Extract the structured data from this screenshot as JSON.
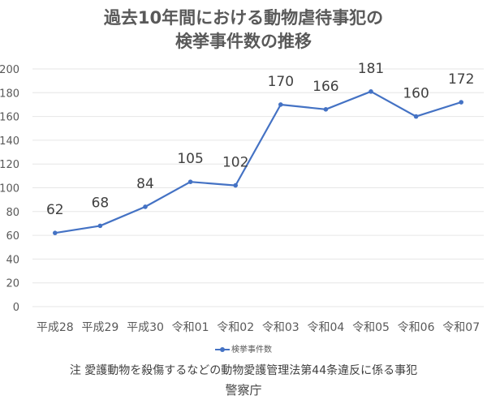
{
  "chart_data": {
    "type": "line",
    "title": "過去10年間における動物虐待事犯の検挙事件数の推移",
    "title_lines": [
      "過去10年間における動物虐待事犯の",
      "検挙事件数の推移"
    ],
    "categories": [
      "平成28",
      "平成29",
      "平成30",
      "令和01",
      "令和02",
      "令和03",
      "令和04",
      "令和05",
      "令和06",
      "令和07"
    ],
    "series": [
      {
        "name": "検挙事件数",
        "values": [
          62,
          68,
          84,
          105,
          102,
          170,
          166,
          181,
          160,
          172
        ],
        "color": "#4472c4"
      }
    ],
    "xlabel": "",
    "ylabel": "",
    "ylim": [
      0,
      200
    ],
    "yticks": [
      0,
      20,
      40,
      60,
      80,
      100,
      120,
      140,
      160,
      180,
      200
    ],
    "grid": true,
    "legend_position": "bottom",
    "data_labels": true
  },
  "note": "注 愛護動物を殺傷するなどの動物愛護管理法第44条違反に係る事犯",
  "source": "警察庁"
}
